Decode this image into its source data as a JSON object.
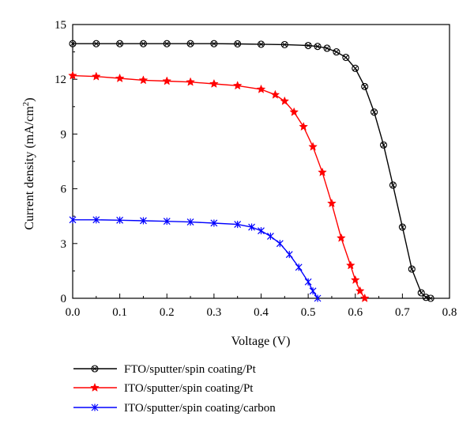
{
  "chart_data": {
    "type": "line",
    "title": "",
    "xlabel": "Voltage (V)",
    "ylabel_main": "Current density (mA/cm",
    "ylabel_sup": "2",
    "ylabel_close": ")",
    "xlim": [
      0.0,
      0.8
    ],
    "ylim": [
      0,
      15
    ],
    "x_ticks": [
      "0.0",
      "0.1",
      "0.2",
      "0.3",
      "0.4",
      "0.5",
      "0.6",
      "0.7",
      "0.8"
    ],
    "y_ticks": [
      "0",
      "3",
      "6",
      "9",
      "12",
      "15"
    ],
    "grid": false,
    "legend_position": "bottom",
    "series": [
      {
        "name": "FTO/sputter/spin coating/Pt",
        "color": "#000000",
        "marker": "circle-x",
        "x": [
          0.0,
          0.05,
          0.1,
          0.15,
          0.2,
          0.25,
          0.3,
          0.35,
          0.4,
          0.45,
          0.5,
          0.52,
          0.54,
          0.56,
          0.58,
          0.6,
          0.62,
          0.64,
          0.66,
          0.68,
          0.7,
          0.72,
          0.74,
          0.75,
          0.76
        ],
        "y": [
          13.95,
          13.95,
          13.95,
          13.95,
          13.95,
          13.95,
          13.95,
          13.94,
          13.92,
          13.9,
          13.85,
          13.8,
          13.7,
          13.5,
          13.2,
          12.6,
          11.6,
          10.2,
          8.4,
          6.2,
          3.9,
          1.6,
          0.3,
          0.05,
          0.0
        ]
      },
      {
        "name": "ITO/sputter/spin coating/Pt",
        "color": "#ff0000",
        "marker": "star",
        "x": [
          0.0,
          0.05,
          0.1,
          0.15,
          0.2,
          0.25,
          0.3,
          0.35,
          0.4,
          0.43,
          0.45,
          0.47,
          0.49,
          0.51,
          0.53,
          0.55,
          0.57,
          0.59,
          0.6,
          0.61,
          0.62
        ],
        "y": [
          12.2,
          12.15,
          12.05,
          11.95,
          11.9,
          11.85,
          11.75,
          11.65,
          11.45,
          11.15,
          10.8,
          10.2,
          9.4,
          8.3,
          6.9,
          5.2,
          3.3,
          1.8,
          1.0,
          0.4,
          0.0
        ]
      },
      {
        "name": "ITO/sputter/spin coating/carbon",
        "color": "#0000ff",
        "marker": "x",
        "x": [
          0.0,
          0.05,
          0.1,
          0.15,
          0.2,
          0.25,
          0.3,
          0.35,
          0.38,
          0.4,
          0.42,
          0.44,
          0.46,
          0.48,
          0.5,
          0.51,
          0.52
        ],
        "y": [
          4.3,
          4.3,
          4.28,
          4.25,
          4.22,
          4.18,
          4.12,
          4.05,
          3.9,
          3.7,
          3.4,
          3.0,
          2.4,
          1.7,
          0.9,
          0.4,
          0.0
        ]
      }
    ]
  }
}
